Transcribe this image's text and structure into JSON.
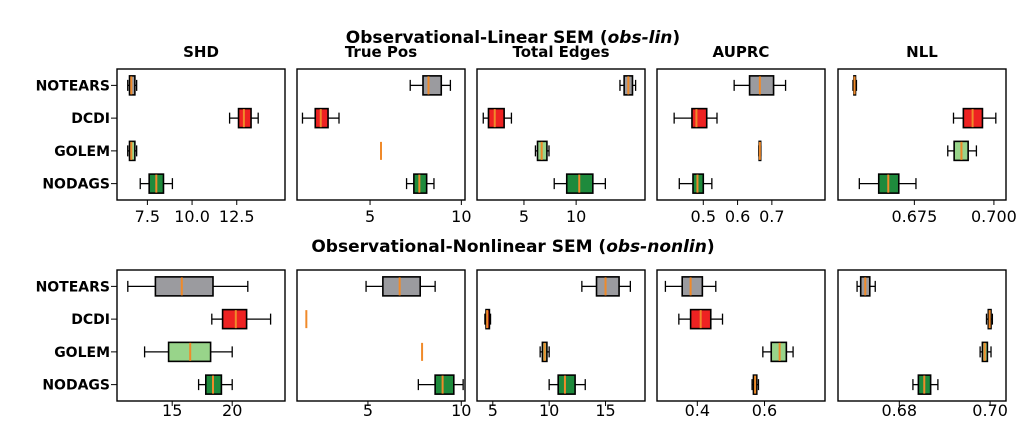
{
  "colors": {
    "NOTEARS": "#9b9b9f",
    "DCDI": "#ee2222",
    "GOLEM": "#98d48a",
    "NODAGS": "#1e8a3c",
    "median": "#f08a2a",
    "frame": "#000000"
  },
  "chart_data": [
    {
      "type": "box",
      "row_title_parts": [
        "Observational-Linear SEM (",
        "obs-lin",
        ")"
      ],
      "methods": [
        "NOTEARS",
        "DCDI",
        "GOLEM",
        "NODAGS"
      ],
      "panels": [
        {
          "title": "SHD",
          "xlim": [
            5.8,
            15.2
          ],
          "xticks": [
            7.5,
            10.0,
            12.5
          ],
          "xtick_labels": [
            "7.5",
            "10.0",
            "12.5"
          ],
          "boxes": [
            {
              "method": "NOTEARS",
              "whislo": 6.4,
              "q1": 6.5,
              "med": 6.6,
              "q3": 6.8,
              "whishi": 6.9
            },
            {
              "method": "DCDI",
              "whislo": 12.1,
              "q1": 12.6,
              "med": 12.9,
              "q3": 13.3,
              "whishi": 13.7
            },
            {
              "method": "GOLEM",
              "whislo": 6.4,
              "q1": 6.5,
              "med": 6.6,
              "q3": 6.8,
              "whishi": 6.9
            },
            {
              "method": "NODAGS",
              "whislo": 7.1,
              "q1": 7.6,
              "med": 8.0,
              "q3": 8.4,
              "whishi": 8.9
            }
          ]
        },
        {
          "title": "True Pos",
          "xlim": [
            1.0,
            10.2
          ],
          "xticks": [
            5,
            10
          ],
          "xtick_labels": [
            "5",
            "10"
          ],
          "boxes": [
            {
              "method": "NOTEARS",
              "whislo": 7.2,
              "q1": 7.9,
              "med": 8.2,
              "q3": 8.9,
              "whishi": 9.4
            },
            {
              "method": "DCDI",
              "whislo": 1.3,
              "q1": 2.0,
              "med": 2.3,
              "q3": 2.7,
              "whishi": 3.3
            },
            {
              "method": "GOLEM",
              "whislo": 5.6,
              "q1": 5.6,
              "med": 5.6,
              "q3": 5.6,
              "whishi": 5.6
            },
            {
              "method": "NODAGS",
              "whislo": 7.0,
              "q1": 7.4,
              "med": 7.7,
              "q3": 8.1,
              "whishi": 8.5
            }
          ]
        },
        {
          "title": "Total Edges",
          "xlim": [
            0.5,
            16.6
          ],
          "xticks": [
            5,
            10
          ],
          "xtick_labels": [
            "5",
            "10"
          ],
          "boxes": [
            {
              "method": "NOTEARS",
              "whislo": 14.2,
              "q1": 14.6,
              "med": 15.0,
              "q3": 15.4,
              "whishi": 15.7
            },
            {
              "method": "DCDI",
              "whislo": 1.1,
              "q1": 1.6,
              "med": 2.2,
              "q3": 3.1,
              "whishi": 3.8
            },
            {
              "method": "GOLEM",
              "whislo": 6.1,
              "q1": 6.3,
              "med": 6.7,
              "q3": 7.2,
              "whishi": 7.4
            },
            {
              "method": "NODAGS",
              "whislo": 7.9,
              "q1": 9.1,
              "med": 10.3,
              "q3": 11.6,
              "whishi": 12.8
            }
          ]
        },
        {
          "title": "AUPRC",
          "xlim": [
            0.365,
            0.855
          ],
          "xticks": [
            0.5,
            0.6,
            0.7
          ],
          "xtick_labels": [
            "0.5",
            "0.6",
            "0.7"
          ],
          "boxes": [
            {
              "method": "NOTEARS",
              "whislo": 0.59,
              "q1": 0.635,
              "med": 0.665,
              "q3": 0.705,
              "whishi": 0.74
            },
            {
              "method": "DCDI",
              "whislo": 0.415,
              "q1": 0.467,
              "med": 0.48,
              "q3": 0.51,
              "whishi": 0.54
            },
            {
              "method": "GOLEM",
              "whislo": 0.662,
              "q1": 0.663,
              "med": 0.665,
              "q3": 0.667,
              "whishi": 0.668
            },
            {
              "method": "NODAGS",
              "whislo": 0.43,
              "q1": 0.47,
              "med": 0.483,
              "q3": 0.5,
              "whishi": 0.525
            }
          ]
        },
        {
          "title": "NLL",
          "xlim": [
            0.651,
            0.7038
          ],
          "xticks": [
            0.675,
            0.7
          ],
          "xtick_labels": [
            "0.675",
            "0.700"
          ],
          "boxes": [
            {
              "method": "NOTEARS",
              "whislo": 0.6557,
              "q1": 0.656,
              "med": 0.6562,
              "q3": 0.6565,
              "whishi": 0.6568
            },
            {
              "method": "DCDI",
              "whislo": 0.6873,
              "q1": 0.6904,
              "med": 0.6933,
              "q3": 0.6964,
              "whishi": 0.7006
            },
            {
              "method": "GOLEM",
              "whislo": 0.6855,
              "q1": 0.6875,
              "med": 0.6898,
              "q3": 0.6919,
              "whishi": 0.6945
            },
            {
              "method": "NODAGS",
              "whislo": 0.6577,
              "q1": 0.6638,
              "med": 0.6668,
              "q3": 0.6701,
              "whishi": 0.6755
            }
          ]
        }
      ]
    },
    {
      "type": "box",
      "row_title_parts": [
        "Observational-Nonlinear SEM (",
        "obs-nonlin",
        ")"
      ],
      "methods": [
        "NOTEARS",
        "DCDI",
        "GOLEM",
        "NODAGS"
      ],
      "panels": [
        {
          "title": "",
          "xlim": [
            10.4,
            24.4
          ],
          "xticks": [
            15,
            20
          ],
          "xtick_labels": [
            "15",
            "20"
          ],
          "boxes": [
            {
              "method": "NOTEARS",
              "whislo": 11.3,
              "q1": 13.6,
              "med": 15.8,
              "q3": 18.4,
              "whishi": 21.3
            },
            {
              "method": "DCDI",
              "whislo": 18.3,
              "q1": 19.2,
              "med": 20.3,
              "q3": 21.2,
              "whishi": 23.2
            },
            {
              "method": "GOLEM",
              "whislo": 12.7,
              "q1": 14.7,
              "med": 16.5,
              "q3": 18.2,
              "whishi": 20.0
            },
            {
              "method": "NODAGS",
              "whislo": 17.2,
              "q1": 17.8,
              "med": 18.4,
              "q3": 19.1,
              "whishi": 20.0
            }
          ]
        },
        {
          "title": "",
          "xlim": [
            1.2,
            10.2
          ],
          "xticks": [
            5,
            10
          ],
          "xtick_labels": [
            "5",
            "10"
          ],
          "boxes": [
            {
              "method": "NOTEARS",
              "whislo": 4.9,
              "q1": 5.8,
              "med": 6.7,
              "q3": 7.8,
              "whishi": 8.6
            },
            {
              "method": "DCDI",
              "whislo": 1.7,
              "q1": 1.7,
              "med": 1.7,
              "q3": 1.7,
              "whishi": 1.7
            },
            {
              "method": "GOLEM",
              "whislo": 7.9,
              "q1": 7.9,
              "med": 7.9,
              "q3": 7.9,
              "whishi": 7.9
            },
            {
              "method": "NODAGS",
              "whislo": 7.7,
              "q1": 8.6,
              "med": 9.0,
              "q3": 9.6,
              "whishi": 10.1
            }
          ]
        },
        {
          "title": "",
          "xlim": [
            3.6,
            18.5
          ],
          "xticks": [
            5,
            10,
            15
          ],
          "xtick_labels": [
            "5",
            "10",
            "15"
          ],
          "boxes": [
            {
              "method": "NOTEARS",
              "whislo": 12.9,
              "q1": 14.2,
              "med": 15.0,
              "q3": 16.2,
              "whishi": 17.2
            },
            {
              "method": "DCDI",
              "whislo": 4.3,
              "q1": 4.4,
              "med": 4.5,
              "q3": 4.7,
              "whishi": 4.8
            },
            {
              "method": "GOLEM",
              "whislo": 9.2,
              "q1": 9.4,
              "med": 9.6,
              "q3": 9.8,
              "whishi": 10.0
            },
            {
              "method": "NODAGS",
              "whislo": 10.0,
              "q1": 10.8,
              "med": 11.4,
              "q3": 12.3,
              "whishi": 13.2
            }
          ]
        },
        {
          "title": "",
          "xlim": [
            0.28,
            0.78
          ],
          "xticks": [
            0.4,
            0.6
          ],
          "xtick_labels": [
            "0.4",
            "0.6"
          ],
          "boxes": [
            {
              "method": "NOTEARS",
              "whislo": 0.305,
              "q1": 0.355,
              "med": 0.38,
              "q3": 0.415,
              "whishi": 0.455
            },
            {
              "method": "DCDI",
              "whislo": 0.345,
              "q1": 0.38,
              "med": 0.41,
              "q3": 0.44,
              "whishi": 0.475
            },
            {
              "method": "GOLEM",
              "whislo": 0.595,
              "q1": 0.62,
              "med": 0.645,
              "q3": 0.665,
              "whishi": 0.685
            },
            {
              "method": "NODAGS",
              "whislo": 0.563,
              "q1": 0.567,
              "med": 0.572,
              "q3": 0.577,
              "whishi": 0.582
            }
          ]
        },
        {
          "title": "",
          "xlim": [
            0.6665,
            0.7035
          ],
          "xticks": [
            0.68,
            0.7
          ],
          "xtick_labels": [
            "0.68",
            "0.70"
          ],
          "boxes": [
            {
              "method": "NOTEARS",
              "whislo": 0.6707,
              "q1": 0.6715,
              "med": 0.6725,
              "q3": 0.6735,
              "whishi": 0.6747
            },
            {
              "method": "DCDI",
              "whislo": 0.6992,
              "q1": 0.6996,
              "med": 0.6999,
              "q3": 0.7002,
              "whishi": 0.7005
            },
            {
              "method": "GOLEM",
              "whislo": 0.6978,
              "q1": 0.6983,
              "med": 0.6988,
              "q3": 0.6994,
              "whishi": 0.7002
            },
            {
              "method": "NODAGS",
              "whislo": 0.683,
              "q1": 0.6842,
              "med": 0.6855,
              "q3": 0.6869,
              "whishi": 0.6885
            }
          ]
        }
      ]
    }
  ]
}
